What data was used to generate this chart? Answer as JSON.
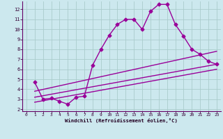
{
  "background_color": "#cce8ee",
  "grid_color": "#aacccc",
  "line_color": "#990099",
  "marker": "D",
  "markersize": 2.5,
  "linewidth": 1.0,
  "xlim": [
    -0.5,
    23.5
  ],
  "ylim": [
    1.8,
    12.8
  ],
  "yticks": [
    2,
    3,
    4,
    5,
    6,
    7,
    8,
    9,
    10,
    11,
    12
  ],
  "xticks": [
    0,
    1,
    2,
    3,
    4,
    5,
    6,
    7,
    8,
    9,
    10,
    11,
    12,
    13,
    14,
    15,
    16,
    17,
    18,
    19,
    20,
    21,
    22,
    23
  ],
  "xlabel": "Windchill (Refroidissement éolien,°C)",
  "series1_x": [
    1,
    2,
    3,
    4,
    5,
    6,
    7,
    8,
    9,
    10,
    11,
    12,
    13,
    14,
    15,
    16,
    17,
    18,
    19,
    20,
    21,
    22,
    23
  ],
  "series1_y": [
    4.7,
    3.0,
    3.1,
    2.8,
    2.5,
    3.2,
    3.3,
    6.4,
    8.0,
    9.4,
    10.5,
    11.0,
    11.0,
    10.0,
    11.8,
    12.5,
    12.5,
    10.5,
    9.3,
    8.0,
    7.5,
    6.8,
    6.5
  ],
  "line2_x": [
    1,
    23
  ],
  "line2_y": [
    3.8,
    7.8
  ],
  "line3_x": [
    1,
    23
  ],
  "line3_y": [
    3.2,
    6.5
  ],
  "line4_x": [
    1,
    23
  ],
  "line4_y": [
    2.7,
    6.0
  ]
}
